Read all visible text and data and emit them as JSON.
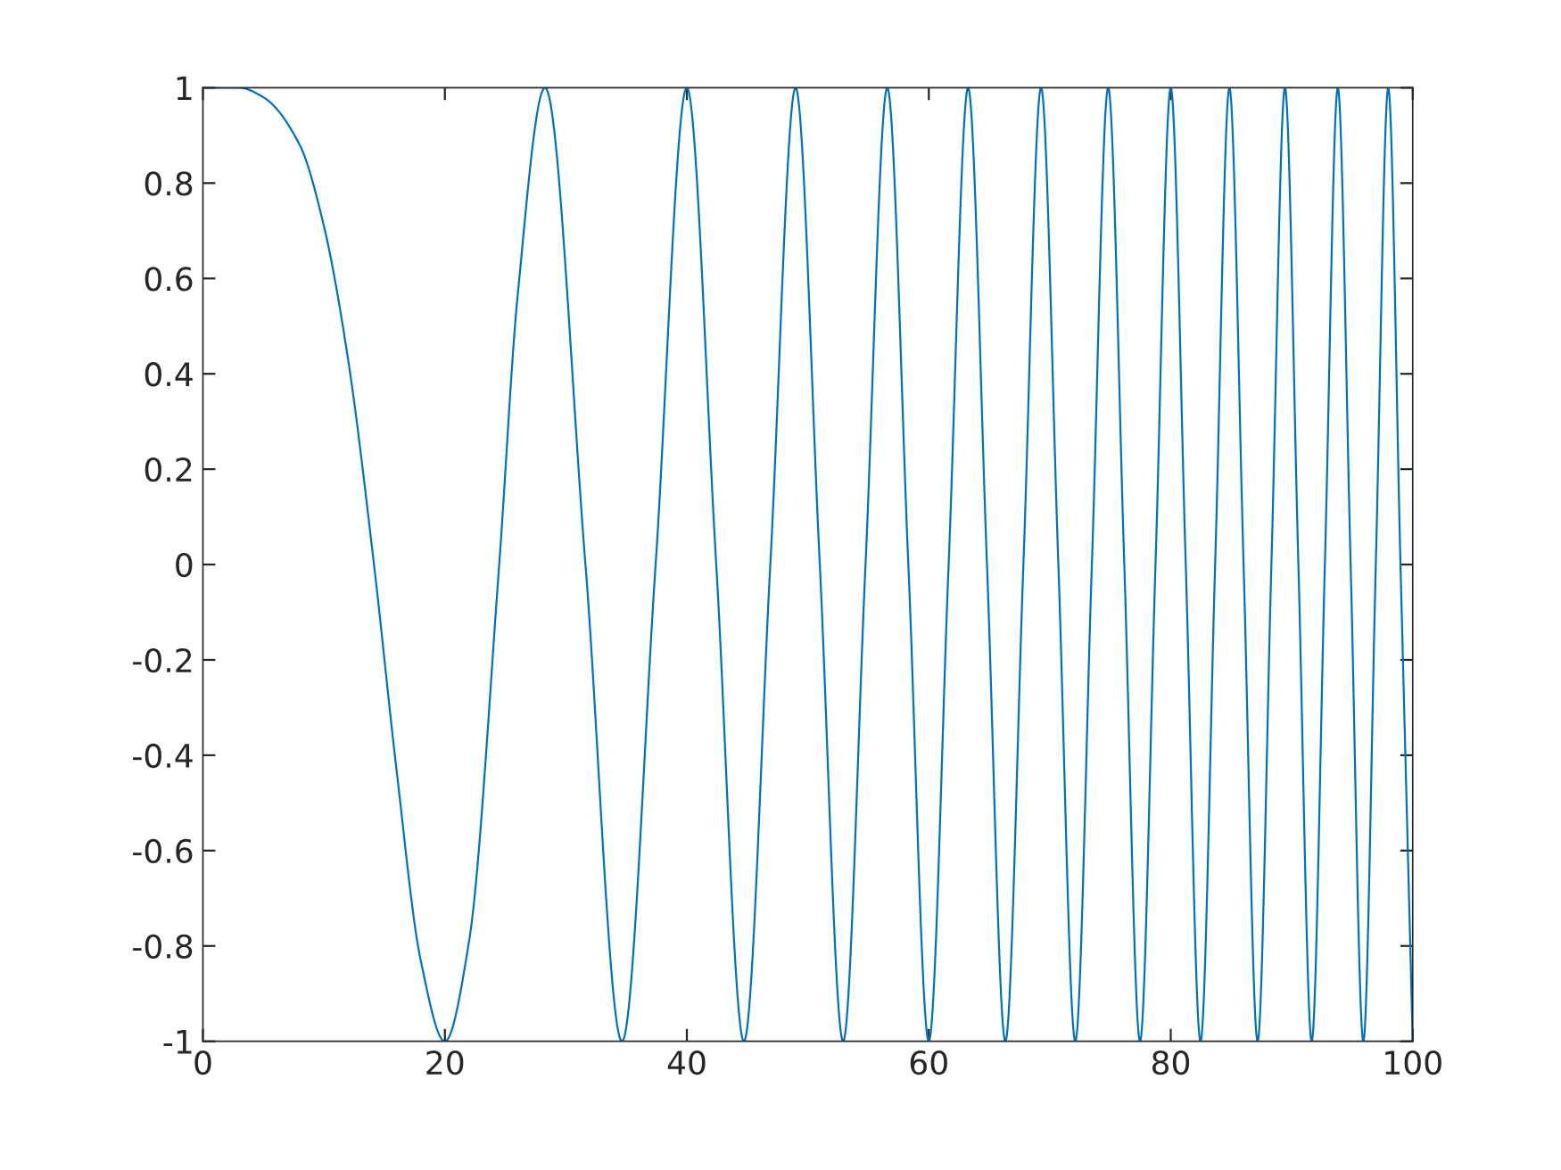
{
  "chart_data": {
    "type": "line",
    "line_style": "solid",
    "marker": "none",
    "grid": false,
    "legend": false,
    "series": [
      {
        "color": "#0072bd",
        "x": [
          0,
          3,
          5,
          8,
          10,
          12,
          14.14,
          16,
          18,
          20,
          22,
          24.49,
          26,
          28.28,
          31.62,
          34.64,
          37.42,
          40,
          42.43,
          44.72,
          46.9,
          48.99,
          50.99,
          52.92,
          54.77,
          56.57,
          58.31,
          60,
          61.64,
          63.25,
          64.81,
          66.33,
          67.82,
          69.28,
          70.71,
          72.11,
          73.48,
          74.83,
          76.16,
          77.46,
          78.74,
          80,
          81.24,
          82.46,
          83.67,
          84.85,
          86.02,
          87.18,
          88.32,
          89.44,
          90.55,
          91.65,
          92.74,
          93.81,
          94.87,
          95.92,
          96.95,
          97.98,
          98.99,
          100
        ],
        "values": [
          1,
          1,
          0.98,
          0.88,
          0.71,
          0.43,
          0,
          -0.43,
          -0.83,
          -1,
          -0.79,
          0,
          0.56,
          1,
          0,
          -1,
          0,
          1,
          0,
          -1,
          0,
          1,
          0,
          -1,
          0,
          1,
          0,
          -1,
          0,
          1,
          0,
          -1,
          0,
          1,
          0,
          -1,
          0,
          1,
          0,
          -1,
          0,
          1,
          0,
          -1,
          0,
          1,
          0,
          -1,
          0,
          1,
          0,
          -1,
          0,
          1,
          0,
          -1,
          0,
          1,
          0,
          -1
        ]
      }
    ],
    "xlim": [
      0,
      100
    ],
    "xticks": [
      0,
      20,
      40,
      60,
      80,
      100
    ],
    "ylim": [
      -1,
      1
    ],
    "yticks": [
      -1,
      -0.8,
      -0.6,
      -0.4,
      -0.2,
      0,
      0.2,
      0.4,
      0.6,
      0.8,
      1
    ]
  }
}
